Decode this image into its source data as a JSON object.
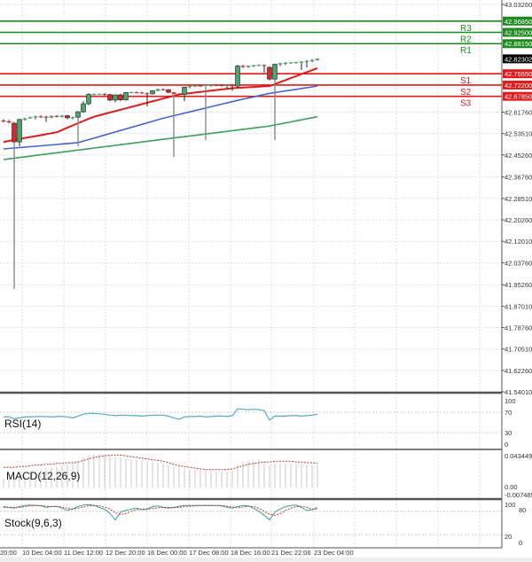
{
  "chart_data": {
    "type": "candlestick",
    "price_axis_labels": [
      "43.03260",
      "42.61760",
      "42.53510",
      "42.45260",
      "42.36760",
      "42.28510",
      "42.20260",
      "42.12010",
      "42.03760",
      "41.95260",
      "41.87010",
      "41.78760",
      "41.70510",
      "41.62260",
      "41.54010"
    ],
    "price_range": [
      41.5401,
      43.0326
    ],
    "current_price": "42.82302",
    "x_labels": [
      "20:00",
      "10 Dec 04:00",
      "11 Dec 12:00",
      "12 Dec 20:00",
      "16 Dec 00:00",
      "17 Dec 08:00",
      "18 Dec 16:00",
      "21 Dec 22:06",
      "23 Dec 04:00"
    ],
    "levels": [
      {
        "name": "R3",
        "value": "42.96850",
        "color": "#1f8a1f"
      },
      {
        "name": "R2",
        "value": "42.92500",
        "color": "#1f8a1f"
      },
      {
        "name": "R1",
        "value": "42.88150",
        "color": "#1f8a1f"
      },
      {
        "name": "S1",
        "value": "42.76550",
        "color": "#e01b1b"
      },
      {
        "name": "S2",
        "value": "42.72200",
        "color": "#e01b1b"
      },
      {
        "name": "S3",
        "value": "42.67850",
        "color": "#e01b1b"
      }
    ],
    "candles_ohlc": [
      [
        42.585,
        42.59,
        42.578,
        42.582
      ],
      [
        42.582,
        42.588,
        42.575,
        42.578
      ],
      [
        42.575,
        42.58,
        41.936,
        42.503
      ],
      [
        42.503,
        42.592,
        42.486,
        42.589
      ],
      [
        42.589,
        42.596,
        42.585,
        42.593
      ],
      [
        42.596,
        42.6,
        42.592,
        42.598
      ],
      [
        42.598,
        42.604,
        42.59,
        42.601
      ],
      [
        42.601,
        42.605,
        42.596,
        42.6
      ],
      [
        42.6,
        42.604,
        42.58,
        42.597
      ],
      [
        42.597,
        42.605,
        42.594,
        42.603
      ],
      [
        42.603,
        42.606,
        42.598,
        42.6
      ],
      [
        42.6,
        42.606,
        42.597,
        42.604
      ],
      [
        42.604,
        42.606,
        42.59,
        42.596
      ],
      [
        42.596,
        42.6,
        42.59,
        42.598
      ],
      [
        42.598,
        42.622,
        42.486,
        42.619
      ],
      [
        42.619,
        42.66,
        42.615,
        42.65
      ],
      [
        42.65,
        42.69,
        42.645,
        42.686
      ],
      [
        42.686,
        42.69,
        42.683,
        42.687
      ],
      [
        42.687,
        42.689,
        42.684,
        42.688
      ],
      [
        42.688,
        42.69,
        42.68,
        42.685
      ],
      [
        42.685,
        42.688,
        42.66,
        42.664
      ],
      [
        42.664,
        42.686,
        42.655,
        42.684
      ],
      [
        42.684,
        42.688,
        42.66,
        42.665
      ],
      [
        42.665,
        42.695,
        42.662,
        42.693
      ],
      [
        42.693,
        42.696,
        42.69,
        42.694
      ],
      [
        42.694,
        42.697,
        42.69,
        42.693
      ],
      [
        42.693,
        42.696,
        42.688,
        42.69
      ],
      [
        42.69,
        42.694,
        42.64,
        42.688
      ],
      [
        42.688,
        42.702,
        42.686,
        42.7
      ],
      [
        42.7,
        42.708,
        42.698,
        42.706
      ],
      [
        42.706,
        42.708,
        42.7,
        42.704
      ],
      [
        42.704,
        42.706,
        42.69,
        42.694
      ],
      [
        42.694,
        42.696,
        42.445,
        42.688
      ],
      [
        42.688,
        42.69,
        42.684,
        42.686
      ],
      [
        42.686,
        42.716,
        42.66,
        42.714
      ],
      [
        42.714,
        42.72,
        42.71,
        42.718
      ],
      [
        42.718,
        42.721,
        42.714,
        42.72
      ],
      [
        42.72,
        42.722,
        42.716,
        42.719
      ],
      [
        42.719,
        42.724,
        42.51,
        42.722
      ],
      [
        42.722,
        42.726,
        42.716,
        42.724
      ],
      [
        42.724,
        42.726,
        42.718,
        42.722
      ],
      [
        42.722,
        42.725,
        42.716,
        42.721
      ],
      [
        42.721,
        42.724,
        42.71,
        42.722
      ],
      [
        42.722,
        42.725,
        42.7,
        42.718
      ],
      [
        42.718,
        42.8,
        42.712,
        42.795
      ],
      [
        42.795,
        42.8,
        42.788,
        42.792
      ],
      [
        42.792,
        42.798,
        42.788,
        42.796
      ],
      [
        42.796,
        42.8,
        42.792,
        42.798
      ],
      [
        42.798,
        42.801,
        42.795,
        42.799
      ],
      [
        42.799,
        42.801,
        42.77,
        42.797
      ],
      [
        42.79,
        42.795,
        42.74,
        42.745
      ],
      [
        42.745,
        42.805,
        42.51,
        42.802
      ],
      [
        42.802,
        42.808,
        42.795,
        42.806
      ],
      [
        42.806,
        42.81,
        42.8,
        42.808
      ],
      [
        42.808,
        42.81,
        42.804,
        42.809
      ],
      [
        42.809,
        42.812,
        42.805,
        42.81
      ],
      [
        42.81,
        42.814,
        42.78,
        42.812
      ],
      [
        42.812,
        42.818,
        42.79,
        42.815
      ],
      [
        42.815,
        42.822,
        42.81,
        42.818
      ],
      [
        42.818,
        42.824,
        42.816,
        42.823
      ]
    ],
    "moving_averages": [
      {
        "color": "#e01b1b",
        "points": [
          [
            0,
            42.503
          ],
          [
            10,
            42.54
          ],
          [
            14,
            42.575
          ],
          [
            17,
            42.6
          ],
          [
            33,
            42.686
          ],
          [
            43,
            42.71
          ],
          [
            50,
            42.718
          ],
          [
            59,
            42.787
          ]
        ]
      },
      {
        "color": "#4466cc",
        "points": [
          [
            0,
            42.476
          ],
          [
            14,
            42.5
          ],
          [
            30,
            42.594
          ],
          [
            44,
            42.663
          ],
          [
            50,
            42.69
          ],
          [
            59,
            42.718
          ]
        ]
      },
      {
        "color": "#3ca05a",
        "points": [
          [
            0,
            42.435
          ],
          [
            30,
            42.513
          ],
          [
            50,
            42.564
          ],
          [
            59,
            42.6
          ]
        ]
      }
    ],
    "rsi": {
      "label": "RSI(14)",
      "axis_labels": [
        "100",
        "70",
        "30",
        "0"
      ],
      "values": [
        62,
        62,
        58,
        60,
        62,
        62,
        63,
        63,
        63,
        62,
        63,
        63,
        62,
        60,
        64,
        68,
        70,
        70,
        69,
        68,
        66,
        65,
        66,
        66,
        65,
        65,
        64,
        65,
        66,
        66,
        66,
        64,
        60,
        57,
        62,
        63,
        63,
        64,
        62,
        63,
        64,
        64,
        63,
        65,
        80,
        79,
        78,
        79,
        78,
        76,
        55,
        64,
        64,
        64,
        65,
        65,
        64,
        65,
        66,
        68
      ]
    },
    "macd": {
      "label": "MACD(12,26,9)",
      "axis_labels": [
        "0.043449",
        "0.00",
        "-0.007485"
      ],
      "range": [
        -0.007485,
        0.043449
      ],
      "histogram": [
        0.012,
        0.013,
        0.014,
        0.016,
        0.018,
        0.02,
        0.022,
        0.024,
        0.026,
        0.027,
        0.028,
        0.029,
        0.03,
        0.032,
        0.036,
        0.04,
        0.043,
        0.044,
        0.044,
        0.043,
        0.042,
        0.041,
        0.04,
        0.039,
        0.038,
        0.037,
        0.036,
        0.035,
        0.034,
        0.033,
        0.032,
        0.03,
        0.028,
        0.026,
        0.025,
        0.024,
        0.024,
        0.023,
        0.022,
        0.022,
        0.021,
        0.021,
        0.021,
        0.022,
        0.03,
        0.034,
        0.036,
        0.037,
        0.037,
        0.035,
        0.03,
        0.031,
        0.032,
        0.032,
        0.031,
        0.031,
        0.03,
        0.03,
        0.03,
        0.03
      ],
      "signal": [
        0.027,
        0.027,
        0.027,
        0.028,
        0.028,
        0.029,
        0.03,
        0.03,
        0.031,
        0.031,
        0.032,
        0.032,
        0.033,
        0.033,
        0.034,
        0.036,
        0.038,
        0.04,
        0.041,
        0.042,
        0.043,
        0.043,
        0.043,
        0.042,
        0.041,
        0.04,
        0.039,
        0.038,
        0.037,
        0.036,
        0.035,
        0.033,
        0.031,
        0.029,
        0.028,
        0.027,
        0.026,
        0.025,
        0.024,
        0.024,
        0.024,
        0.024,
        0.024,
        0.025,
        0.027,
        0.029,
        0.031,
        0.032,
        0.033,
        0.034,
        0.034,
        0.035,
        0.035,
        0.035,
        0.035,
        0.034,
        0.034,
        0.033,
        0.033,
        0.032
      ]
    },
    "stochastic": {
      "label": "Stock(9,6,3)",
      "axis_labels": [
        "100",
        "80",
        "20",
        "0"
      ],
      "main": [
        92,
        90,
        88,
        92,
        95,
        96,
        95,
        94,
        90,
        92,
        93,
        88,
        82,
        86,
        92,
        96,
        97,
        95,
        90,
        85,
        75,
        58,
        78,
        82,
        86,
        88,
        84,
        85,
        92,
        94,
        90,
        88,
        90,
        93,
        95,
        95,
        95,
        95,
        95,
        95,
        95,
        94,
        90,
        88,
        92,
        95,
        94,
        88,
        80,
        70,
        58,
        78,
        86,
        92,
        95,
        96,
        90,
        82,
        84,
        90
      ],
      "signal": [
        90,
        90,
        90,
        90,
        92,
        94,
        95,
        95,
        93,
        92,
        92,
        91,
        88,
        86,
        88,
        91,
        94,
        95,
        94,
        91,
        86,
        76,
        72,
        74,
        80,
        84,
        86,
        86,
        87,
        89,
        90,
        90,
        89,
        90,
        92,
        93,
        94,
        95,
        95,
        95,
        95,
        95,
        93,
        91,
        90,
        91,
        93,
        92,
        88,
        80,
        72,
        70,
        74,
        82,
        88,
        92,
        93,
        90,
        86,
        86
      ]
    }
  }
}
